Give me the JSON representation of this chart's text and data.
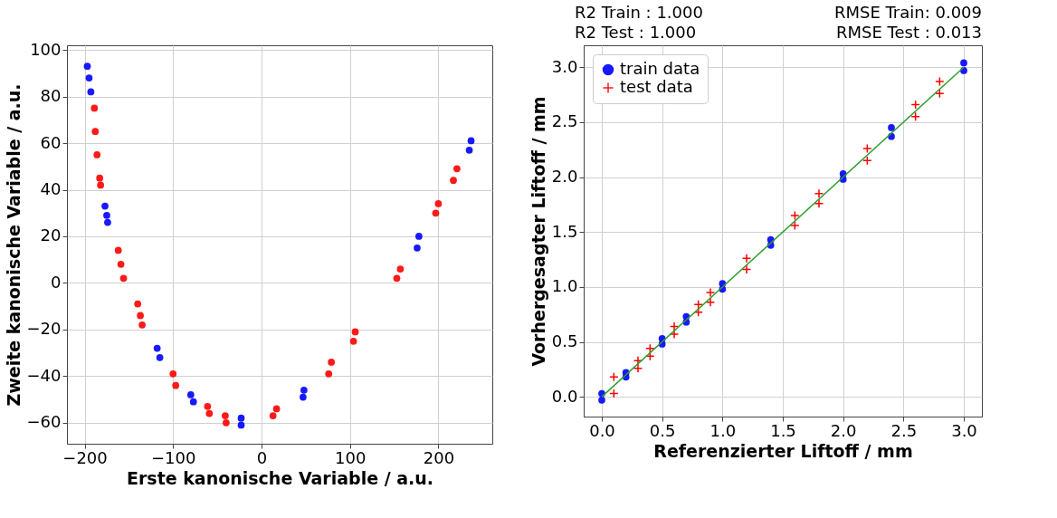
{
  "chart_data": [
    {
      "type": "scatter",
      "xlabel": "Erste kanonische Variable / a.u.",
      "ylabel": "Zweite kanonische Variable / a.u.",
      "xlim": [
        -220,
        261
      ],
      "ylim": [
        -69,
        102
      ],
      "xticks": [
        -200,
        -100,
        0,
        100,
        200
      ],
      "yticks": [
        -60,
        -40,
        -20,
        0,
        20,
        40,
        60,
        80,
        100
      ],
      "grid": true,
      "legend": false,
      "marker": "circle",
      "series": [
        {
          "color": "#0000ff",
          "x": [
            -197,
            -195,
            -193,
            -177,
            -175,
            -174,
            -118,
            -115,
            -80,
            -77,
            -23,
            -23,
            48,
            47,
            178,
            176,
            237,
            235
          ],
          "values": [
            93,
            88,
            82,
            33,
            29,
            26,
            -28,
            -32,
            -48,
            -51,
            -58,
            -61,
            -46,
            -49,
            20,
            15,
            61,
            57
          ]
        },
        {
          "color": "#ff0000",
          "x": [
            -189,
            -188,
            -186,
            -183,
            -182,
            -162,
            -159,
            -156,
            -140,
            -137,
            -135,
            -100,
            -97,
            -61,
            -59,
            -41,
            -40,
            17,
            13,
            79,
            76,
            106,
            104,
            157,
            153,
            200,
            197,
            221,
            217
          ],
          "values": [
            75,
            65,
            55,
            45,
            42,
            14,
            8,
            2,
            -9,
            -14,
            -18,
            -39,
            -44,
            -53,
            -56,
            -57,
            -60,
            -54,
            -57,
            -34,
            -39,
            -21,
            -25,
            6,
            2,
            34,
            30,
            49,
            44
          ]
        }
      ]
    },
    {
      "type": "scatter",
      "xlabel": "Referenzierter Liftoff / mm",
      "ylabel": "Vorhergesagter Liftoff / mm",
      "xlim": [
        -0.15,
        3.15
      ],
      "ylim": [
        -0.18,
        3.2
      ],
      "xticks": [
        {
          "value": 0,
          "label": "0.0"
        },
        0.5,
        {
          "value": 1,
          "label": "1.0"
        },
        1.5,
        {
          "value": 2,
          "label": "2.0"
        },
        2.5,
        {
          "value": 3,
          "label": "3.0"
        }
      ],
      "yticks": [
        {
          "value": 0,
          "label": "0.0"
        },
        0.5,
        {
          "value": 1,
          "label": "1.0"
        },
        1.5,
        {
          "value": 2,
          "label": "2.0"
        },
        2.5,
        {
          "value": 3,
          "label": "3.0"
        }
      ],
      "grid": true,
      "legend": "top left",
      "annotations": [
        "R2 Train : 1.000",
        "R2 Test : 1.000",
        "RMSE Train: 0.009",
        "RMSE Test : 0.013"
      ],
      "series": [
        {
          "name": "train data",
          "type": "scatter",
          "marker": "circle",
          "color": "#0000ff",
          "x": [
            0,
            0,
            0.2,
            0.2,
            0.5,
            0.5,
            0.7,
            0.7,
            1.0,
            1.0,
            1.4,
            1.4,
            2.0,
            2.0,
            2.4,
            2.4,
            3.0,
            3.0
          ],
          "values": [
            0.03,
            -0.03,
            0.22,
            0.18,
            0.53,
            0.48,
            0.73,
            0.68,
            1.03,
            0.98,
            1.43,
            1.38,
            2.03,
            1.98,
            2.45,
            2.37,
            3.04,
            2.97
          ]
        },
        {
          "name": "test data",
          "type": "scatter",
          "marker": "cross",
          "color": "#ff0000",
          "x": [
            0.1,
            0.1,
            0.3,
            0.3,
            0.4,
            0.4,
            0.6,
            0.6,
            0.8,
            0.8,
            0.9,
            0.9,
            1.2,
            1.2,
            1.6,
            1.6,
            1.8,
            1.8,
            2.2,
            2.2,
            2.6,
            2.6,
            2.8,
            2.8
          ],
          "values": [
            0.18,
            0.03,
            0.33,
            0.26,
            0.44,
            0.37,
            0.64,
            0.57,
            0.84,
            0.77,
            0.95,
            0.86,
            1.26,
            1.16,
            1.65,
            1.56,
            1.85,
            1.76,
            2.26,
            2.15,
            2.66,
            2.55,
            2.87,
            2.76
          ]
        },
        {
          "type": "line",
          "color": "#2ca02c",
          "x": [
            0,
            3
          ],
          "values": [
            0,
            3
          ]
        }
      ]
    }
  ]
}
